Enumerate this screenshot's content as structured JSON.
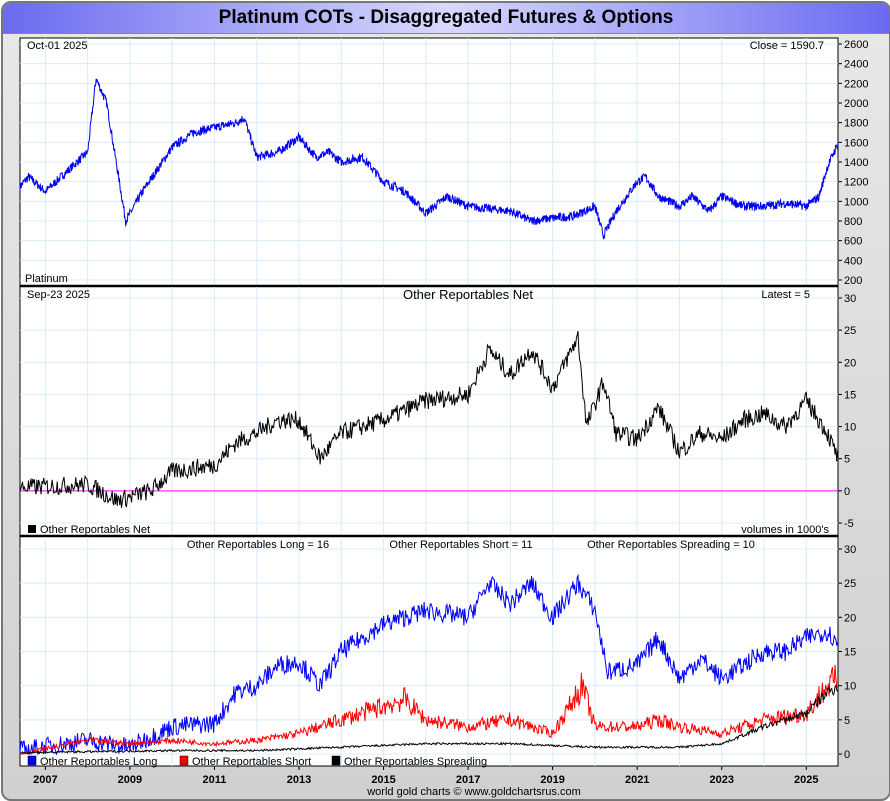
{
  "title": "Platinum COTs - Disaggregated Futures & Options",
  "footer": "world gold charts © www.goldchartsrus.com",
  "colors": {
    "price": "#0000ee",
    "net": "#000000",
    "zero": "#ff00ff",
    "long": "#0000ff",
    "short": "#ff0000",
    "spreading": "#000000",
    "grid": "#d8ecf8"
  },
  "chart_data": [
    {
      "type": "line",
      "panel": "price",
      "date_label": "Oct-01  2025",
      "latest_label": "Close = 1590.7",
      "series_label": "Platinum",
      "ylim": [
        200,
        2600
      ],
      "yticks": [
        200,
        400,
        600,
        800,
        1000,
        1200,
        1400,
        1600,
        1800,
        2000,
        2200,
        2400,
        2600
      ],
      "series": [
        {
          "name": "Platinum",
          "points": [
            [
              2006.4,
              1150
            ],
            [
              2006.6,
              1250
            ],
            [
              2007,
              1100
            ],
            [
              2007.5,
              1300
            ],
            [
              2008,
              1500
            ],
            [
              2008.2,
              2250
            ],
            [
              2008.45,
              2000
            ],
            [
              2008.6,
              1600
            ],
            [
              2008.9,
              800
            ],
            [
              2009.3,
              1100
            ],
            [
              2010,
              1550
            ],
            [
              2010.5,
              1700
            ],
            [
              2011,
              1750
            ],
            [
              2011.5,
              1800
            ],
            [
              2011.7,
              1850
            ],
            [
              2012,
              1450
            ],
            [
              2012.5,
              1500
            ],
            [
              2013,
              1650
            ],
            [
              2013.4,
              1450
            ],
            [
              2013.7,
              1500
            ],
            [
              2014,
              1400
            ],
            [
              2014.5,
              1450
            ],
            [
              2015,
              1200
            ],
            [
              2015.5,
              1100
            ],
            [
              2016,
              880
            ],
            [
              2016.5,
              1050
            ],
            [
              2017,
              950
            ],
            [
              2018,
              900
            ],
            [
              2018.5,
              800
            ],
            [
              2019,
              830
            ],
            [
              2019.5,
              850
            ],
            [
              2020,
              950
            ],
            [
              2020.2,
              650
            ],
            [
              2020.5,
              900
            ],
            [
              2021,
              1200
            ],
            [
              2021.2,
              1250
            ],
            [
              2021.5,
              1050
            ],
            [
              2022,
              950
            ],
            [
              2022.3,
              1050
            ],
            [
              2022.7,
              900
            ],
            [
              2023,
              1050
            ],
            [
              2023.5,
              950
            ],
            [
              2024,
              950
            ],
            [
              2024.5,
              980
            ],
            [
              2025,
              950
            ],
            [
              2025.3,
              1050
            ],
            [
              2025.5,
              1350
            ],
            [
              2025.75,
              1590
            ]
          ]
        }
      ]
    },
    {
      "type": "line",
      "panel": "net",
      "date_label": "Sep-23  2025",
      "title": "Other Reportables Net",
      "latest_label": "Latest = 5",
      "legend": "Other Reportables Net",
      "note": "volumes in 1000's",
      "ylim": [
        -5,
        30
      ],
      "yticks": [
        -5,
        0,
        5,
        10,
        15,
        20,
        25,
        30
      ],
      "series": [
        {
          "name": "Other Reportables Net",
          "points": [
            [
              2006.4,
              0.5
            ],
            [
              2008,
              1
            ],
            [
              2008.7,
              -1.5
            ],
            [
              2009.5,
              0
            ],
            [
              2010,
              3
            ],
            [
              2011,
              4
            ],
            [
              2011.5,
              7.5
            ],
            [
              2012,
              9
            ],
            [
              2012.5,
              11
            ],
            [
              2013,
              11
            ],
            [
              2013.5,
              5
            ],
            [
              2014,
              9
            ],
            [
              2015,
              11
            ],
            [
              2016,
              14
            ],
            [
              2017,
              15
            ],
            [
              2017.5,
              22
            ],
            [
              2018,
              18
            ],
            [
              2018.5,
              22
            ],
            [
              2019,
              16
            ],
            [
              2019.6,
              24
            ],
            [
              2019.8,
              10
            ],
            [
              2020.2,
              17
            ],
            [
              2020.5,
              9
            ],
            [
              2021,
              8
            ],
            [
              2021.5,
              13
            ],
            [
              2022,
              6
            ],
            [
              2022.5,
              9
            ],
            [
              2023,
              8
            ],
            [
              2023.5,
              11
            ],
            [
              2024,
              12
            ],
            [
              2024.5,
              10
            ],
            [
              2025,
              14
            ],
            [
              2025.5,
              9
            ],
            [
              2025.75,
              5
            ]
          ]
        }
      ]
    },
    {
      "type": "line",
      "panel": "components",
      "headers": [
        "Other Reportables Long = 16",
        "Other Reportables Short = 11",
        "Other Reportables Spreading = 10"
      ],
      "ylim": [
        0,
        30
      ],
      "yticks": [
        0,
        5,
        10,
        15,
        20,
        25,
        30
      ],
      "series": [
        {
          "name": "Other Reportables Long",
          "points": [
            [
              2006.4,
              0.5
            ],
            [
              2008,
              2
            ],
            [
              2009,
              1
            ],
            [
              2010,
              4
            ],
            [
              2011,
              4.5
            ],
            [
              2011.5,
              9
            ],
            [
              2012,
              10
            ],
            [
              2012.5,
              13
            ],
            [
              2013,
              13.5
            ],
            [
              2013.5,
              10
            ],
            [
              2014,
              15
            ],
            [
              2015,
              19
            ],
            [
              2016,
              21
            ],
            [
              2017,
              20
            ],
            [
              2017.5,
              25
            ],
            [
              2018,
              22
            ],
            [
              2018.5,
              25
            ],
            [
              2019,
              20
            ],
            [
              2019.6,
              25
            ],
            [
              2020,
              21
            ],
            [
              2020.3,
              12
            ],
            [
              2021,
              13
            ],
            [
              2021.5,
              17
            ],
            [
              2022,
              11
            ],
            [
              2022.5,
              14
            ],
            [
              2023,
              11
            ],
            [
              2023.5,
              13
            ],
            [
              2024,
              15
            ],
            [
              2024.5,
              15
            ],
            [
              2025,
              17
            ],
            [
              2025.5,
              18
            ],
            [
              2025.75,
              16
            ]
          ]
        },
        {
          "name": "Other Reportables Short",
          "points": [
            [
              2006.4,
              0
            ],
            [
              2008,
              2
            ],
            [
              2009,
              1.5
            ],
            [
              2010,
              2
            ],
            [
              2011,
              1.5
            ],
            [
              2012,
              2
            ],
            [
              2013,
              3
            ],
            [
              2014,
              5
            ],
            [
              2015,
              7
            ],
            [
              2015.5,
              8
            ],
            [
              2016,
              5
            ],
            [
              2017,
              4
            ],
            [
              2018,
              5
            ],
            [
              2019,
              3
            ],
            [
              2019.7,
              10
            ],
            [
              2020,
              4
            ],
            [
              2021,
              4
            ],
            [
              2021.5,
              5
            ],
            [
              2022,
              4
            ],
            [
              2023,
              3
            ],
            [
              2023.5,
              4
            ],
            [
              2024,
              5
            ],
            [
              2025,
              6
            ],
            [
              2025.5,
              10
            ],
            [
              2025.75,
              11
            ]
          ]
        },
        {
          "name": "Other Reportables Spreading",
          "points": [
            [
              2006.4,
              0.2
            ],
            [
              2010,
              0.5
            ],
            [
              2012,
              0.5
            ],
            [
              2014,
              1
            ],
            [
              2016,
              1.5
            ],
            [
              2018,
              1.5
            ],
            [
              2020,
              1
            ],
            [
              2022,
              1
            ],
            [
              2023,
              1.5
            ],
            [
              2024,
              4
            ],
            [
              2025,
              6
            ],
            [
              2025.5,
              9
            ],
            [
              2025.75,
              10
            ]
          ]
        }
      ]
    }
  ],
  "xticks": [
    "2007",
    "2009",
    "2011",
    "2013",
    "2015",
    "2017",
    "2019",
    "2021",
    "2023",
    "2025"
  ]
}
